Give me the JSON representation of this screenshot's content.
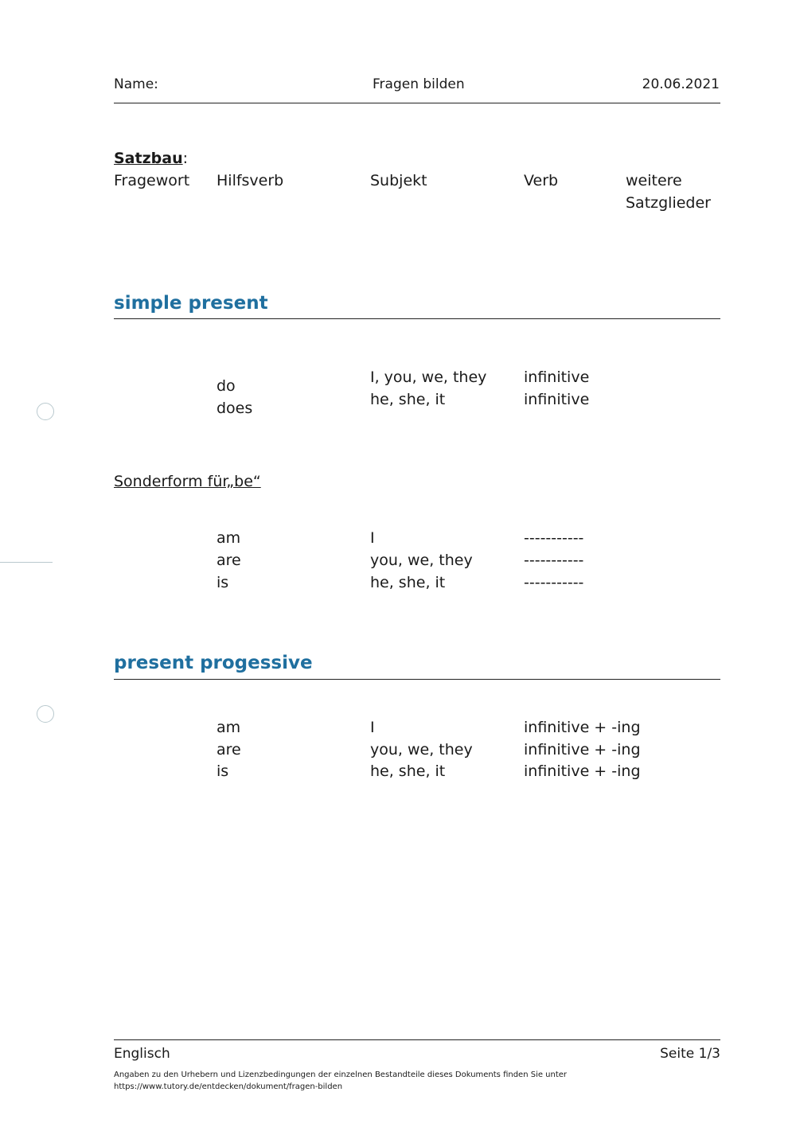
{
  "header": {
    "name_label": "Name:",
    "title": "Fragen bilden",
    "date": "20.06.2021"
  },
  "satzbau": {
    "label": "Satzbau",
    "colon": ":",
    "columns": [
      "Fragewort",
      "Hilfsverb",
      "Subjekt",
      "Verb",
      "weitere",
      "Satzglieder"
    ]
  },
  "simple_present": {
    "title": "simple present",
    "aux": [
      "do",
      "does"
    ],
    "subjects": [
      "I, you, we, they",
      "he, she, it"
    ],
    "verbs": [
      "infinitive",
      "infinitive"
    ]
  },
  "sonderform": {
    "title": "Sonderform für„be“",
    "rows": [
      [
        "am",
        "I",
        "-----------"
      ],
      [
        "are",
        "you, we, they",
        "-----------"
      ],
      [
        "is",
        "he, she, it",
        "-----------"
      ]
    ]
  },
  "present_progressive": {
    "title": "present progessive",
    "rows": [
      [
        "am",
        "I",
        "infinitive + -ing"
      ],
      [
        "are",
        "you, we, they",
        "infinitive + -ing"
      ],
      [
        "is",
        "he, she, it",
        "infinitive + -ing"
      ]
    ]
  },
  "footer": {
    "subject": "Englisch",
    "page": "Seite 1/3",
    "license_line1": "Angaben zu den Urhebern und Lizenzbedingungen der einzelnen Bestandteile dieses Dokuments finden Sie unter",
    "license_line2": "https://www.tutory.de/entdecken/dokument/fragen-bilden"
  },
  "colors": {
    "heading": "#1f6f9f",
    "punch_marks": "#b9c9ce"
  }
}
